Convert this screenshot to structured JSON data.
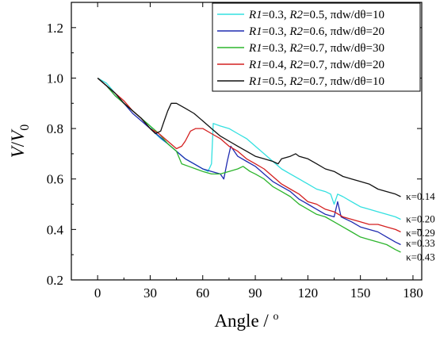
{
  "chart_data": {
    "type": "line",
    "title": "",
    "xlabel": "Angle / °",
    "ylabel": "V/V0",
    "xlim": [
      -15,
      185
    ],
    "ylim": [
      0.2,
      1.3
    ],
    "xticks": [
      0,
      30,
      60,
      90,
      120,
      150,
      180
    ],
    "yticks": [
      0.2,
      0.4,
      0.6,
      0.8,
      1.0,
      1.2
    ],
    "xtick_labels": [
      "0",
      "30",
      "60",
      "90",
      "120",
      "150",
      "180"
    ],
    "ytick_labels": [
      "0.2",
      "0.4",
      "0.6",
      "0.8",
      "1.0",
      "1.2"
    ],
    "legend_position": "top-right",
    "grid": false,
    "series": [
      {
        "name": "R1=0.3, R2=0.5, πdw/dθ=10",
        "legend_parts": [
          [
            "R1",
            true
          ],
          [
            "=0.3, ",
            false
          ],
          [
            "R2",
            true
          ],
          [
            "=0.5, πdw/dθ=10",
            false
          ]
        ],
        "color": "#33e0e0",
        "annotation": "κ=0.20",
        "annotation_at": [
          176,
          0.44
        ],
        "points": [
          [
            0,
            1.0
          ],
          [
            5,
            0.98
          ],
          [
            10,
            0.94
          ],
          [
            15,
            0.9
          ],
          [
            20,
            0.87
          ],
          [
            25,
            0.84
          ],
          [
            30,
            0.81
          ],
          [
            33,
            0.78
          ],
          [
            36,
            0.76
          ],
          [
            40,
            0.74
          ],
          [
            45,
            0.71
          ],
          [
            50,
            0.68
          ],
          [
            55,
            0.66
          ],
          [
            60,
            0.64
          ],
          [
            63,
            0.63
          ],
          [
            65,
            0.66
          ],
          [
            66,
            0.82
          ],
          [
            70,
            0.81
          ],
          [
            75,
            0.8
          ],
          [
            80,
            0.78
          ],
          [
            85,
            0.76
          ],
          [
            90,
            0.73
          ],
          [
            95,
            0.7
          ],
          [
            100,
            0.67
          ],
          [
            105,
            0.64
          ],
          [
            110,
            0.62
          ],
          [
            115,
            0.6
          ],
          [
            120,
            0.58
          ],
          [
            125,
            0.56
          ],
          [
            130,
            0.55
          ],
          [
            133,
            0.54
          ],
          [
            135,
            0.5
          ],
          [
            137,
            0.54
          ],
          [
            140,
            0.53
          ],
          [
            145,
            0.51
          ],
          [
            150,
            0.49
          ],
          [
            155,
            0.48
          ],
          [
            160,
            0.47
          ],
          [
            165,
            0.46
          ],
          [
            170,
            0.45
          ],
          [
            173,
            0.44
          ]
        ]
      },
      {
        "name": "R1=0.3, R2=0.6, πdw/dθ=20",
        "legend_parts": [
          [
            "R1",
            true
          ],
          [
            "=0.3, ",
            false
          ],
          [
            "R2",
            true
          ],
          [
            "=0.6, πdw/dθ=20",
            false
          ]
        ],
        "color": "#1f2bb0",
        "annotation": "κ=0.29",
        "annotation_at": [
          176,
          0.385
        ],
        "points": [
          [
            0,
            1.0
          ],
          [
            5,
            0.97
          ],
          [
            10,
            0.93
          ],
          [
            15,
            0.9
          ],
          [
            20,
            0.86
          ],
          [
            25,
            0.83
          ],
          [
            30,
            0.8
          ],
          [
            35,
            0.77
          ],
          [
            40,
            0.74
          ],
          [
            45,
            0.71
          ],
          [
            50,
            0.68
          ],
          [
            55,
            0.66
          ],
          [
            60,
            0.64
          ],
          [
            65,
            0.63
          ],
          [
            70,
            0.62
          ],
          [
            72,
            0.6
          ],
          [
            74,
            0.67
          ],
          [
            76,
            0.73
          ],
          [
            78,
            0.71
          ],
          [
            80,
            0.69
          ],
          [
            85,
            0.67
          ],
          [
            90,
            0.65
          ],
          [
            95,
            0.62
          ],
          [
            100,
            0.59
          ],
          [
            105,
            0.57
          ],
          [
            110,
            0.55
          ],
          [
            115,
            0.52
          ],
          [
            120,
            0.5
          ],
          [
            125,
            0.48
          ],
          [
            130,
            0.46
          ],
          [
            135,
            0.45
          ],
          [
            137,
            0.51
          ],
          [
            139,
            0.45
          ],
          [
            145,
            0.43
          ],
          [
            150,
            0.41
          ],
          [
            155,
            0.4
          ],
          [
            160,
            0.39
          ],
          [
            165,
            0.37
          ],
          [
            170,
            0.35
          ],
          [
            173,
            0.34
          ]
        ]
      },
      {
        "name": "R1=0.3, R2=0.7, πdw/dθ=30",
        "legend_parts": [
          [
            "R1",
            true
          ],
          [
            "=0.3, ",
            false
          ],
          [
            "R2",
            true
          ],
          [
            "=0.7, πdw/dθ=30",
            false
          ]
        ],
        "color": "#2db52d",
        "annotation": "κ=0.43",
        "annotation_at": [
          176,
          0.29
        ],
        "points": [
          [
            0,
            1.0
          ],
          [
            5,
            0.97
          ],
          [
            10,
            0.93
          ],
          [
            15,
            0.9
          ],
          [
            20,
            0.87
          ],
          [
            25,
            0.84
          ],
          [
            30,
            0.81
          ],
          [
            35,
            0.78
          ],
          [
            40,
            0.74
          ],
          [
            45,
            0.71
          ],
          [
            48,
            0.66
          ],
          [
            52,
            0.65
          ],
          [
            56,
            0.64
          ],
          [
            60,
            0.63
          ],
          [
            65,
            0.62
          ],
          [
            70,
            0.62
          ],
          [
            75,
            0.63
          ],
          [
            80,
            0.64
          ],
          [
            83,
            0.65
          ],
          [
            87,
            0.63
          ],
          [
            90,
            0.62
          ],
          [
            95,
            0.6
          ],
          [
            100,
            0.57
          ],
          [
            105,
            0.55
          ],
          [
            110,
            0.53
          ],
          [
            115,
            0.5
          ],
          [
            120,
            0.48
          ],
          [
            125,
            0.46
          ],
          [
            130,
            0.45
          ],
          [
            135,
            0.43
          ],
          [
            140,
            0.41
          ],
          [
            145,
            0.39
          ],
          [
            150,
            0.37
          ],
          [
            155,
            0.36
          ],
          [
            160,
            0.35
          ],
          [
            165,
            0.34
          ],
          [
            170,
            0.32
          ],
          [
            173,
            0.31
          ]
        ]
      },
      {
        "name": "R1=0.4, R2=0.7, πdw/dθ=20",
        "legend_parts": [
          [
            "R1",
            true
          ],
          [
            "=0.4, ",
            false
          ],
          [
            "R2",
            true
          ],
          [
            "=0.7, πdw/dθ=20",
            false
          ]
        ],
        "color": "#d42020",
        "annotation": "κ=0.33",
        "annotation_at": [
          176,
          0.345
        ],
        "points": [
          [
            0,
            1.0
          ],
          [
            5,
            0.97
          ],
          [
            10,
            0.94
          ],
          [
            15,
            0.91
          ],
          [
            20,
            0.87
          ],
          [
            25,
            0.84
          ],
          [
            30,
            0.8
          ],
          [
            35,
            0.78
          ],
          [
            40,
            0.75
          ],
          [
            45,
            0.72
          ],
          [
            48,
            0.73
          ],
          [
            50,
            0.75
          ],
          [
            53,
            0.79
          ],
          [
            56,
            0.8
          ],
          [
            60,
            0.8
          ],
          [
            65,
            0.78
          ],
          [
            70,
            0.76
          ],
          [
            75,
            0.73
          ],
          [
            80,
            0.71
          ],
          [
            85,
            0.68
          ],
          [
            90,
            0.66
          ],
          [
            95,
            0.64
          ],
          [
            100,
            0.61
          ],
          [
            105,
            0.58
          ],
          [
            110,
            0.56
          ],
          [
            115,
            0.54
          ],
          [
            120,
            0.51
          ],
          [
            125,
            0.5
          ],
          [
            130,
            0.48
          ],
          [
            135,
            0.47
          ],
          [
            140,
            0.45
          ],
          [
            145,
            0.44
          ],
          [
            150,
            0.43
          ],
          [
            155,
            0.42
          ],
          [
            160,
            0.42
          ],
          [
            165,
            0.41
          ],
          [
            170,
            0.4
          ],
          [
            173,
            0.39
          ]
        ]
      },
      {
        "name": "R1=0.5, R2=0.7, πdw/dθ=10",
        "legend_parts": [
          [
            "R1",
            true
          ],
          [
            "=0.5, ",
            false
          ],
          [
            "R2",
            true
          ],
          [
            "=0.7, πdw/dθ=10",
            false
          ]
        ],
        "color": "#111111",
        "annotation": "κ=0.14",
        "annotation_at": [
          176,
          0.53
        ],
        "points": [
          [
            0,
            1.0
          ],
          [
            5,
            0.97
          ],
          [
            10,
            0.94
          ],
          [
            15,
            0.9
          ],
          [
            20,
            0.87
          ],
          [
            25,
            0.84
          ],
          [
            30,
            0.8
          ],
          [
            33,
            0.78
          ],
          [
            36,
            0.79
          ],
          [
            38,
            0.83
          ],
          [
            40,
            0.87
          ],
          [
            42,
            0.9
          ],
          [
            45,
            0.9
          ],
          [
            50,
            0.88
          ],
          [
            55,
            0.86
          ],
          [
            60,
            0.83
          ],
          [
            65,
            0.8
          ],
          [
            70,
            0.77
          ],
          [
            75,
            0.75
          ],
          [
            80,
            0.73
          ],
          [
            85,
            0.71
          ],
          [
            90,
            0.69
          ],
          [
            95,
            0.68
          ],
          [
            100,
            0.67
          ],
          [
            103,
            0.66
          ],
          [
            105,
            0.68
          ],
          [
            110,
            0.69
          ],
          [
            113,
            0.7
          ],
          [
            115,
            0.69
          ],
          [
            120,
            0.68
          ],
          [
            125,
            0.66
          ],
          [
            130,
            0.64
          ],
          [
            135,
            0.63
          ],
          [
            140,
            0.61
          ],
          [
            145,
            0.6
          ],
          [
            150,
            0.59
          ],
          [
            155,
            0.58
          ],
          [
            160,
            0.56
          ],
          [
            165,
            0.55
          ],
          [
            170,
            0.54
          ],
          [
            173,
            0.53
          ]
        ]
      }
    ]
  }
}
